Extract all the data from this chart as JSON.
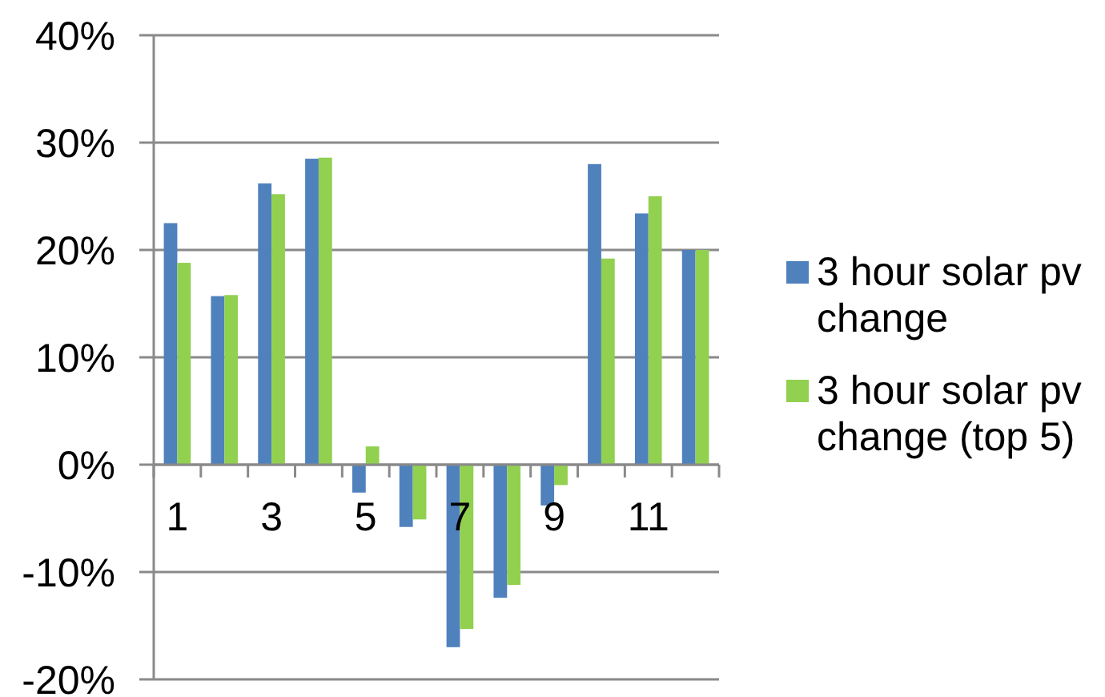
{
  "chart_data": {
    "type": "bar",
    "categories": [
      "1",
      null,
      "3",
      null,
      "5",
      null,
      "7",
      null,
      "9",
      null,
      "11",
      null
    ],
    "series": [
      {
        "name": "3 hour solar pv change",
        "color": "#4f81bd",
        "values": [
          22.5,
          15.7,
          26.2,
          28.5,
          -2.6,
          -5.8,
          -17.0,
          -12.4,
          -3.8,
          28.0,
          23.4,
          20.0
        ]
      },
      {
        "name": "3 hour solar pv change (top 5)",
        "color": "#92d050",
        "values": [
          18.8,
          15.8,
          25.2,
          28.6,
          1.7,
          -5.1,
          -15.3,
          -11.2,
          -1.9,
          19.2,
          25.0,
          20.0
        ]
      }
    ],
    "ylim": [
      -20,
      40
    ],
    "yticks": [
      {
        "value": -20,
        "label": "-20%"
      },
      {
        "value": -10,
        "label": "-10%"
      },
      {
        "value": 0,
        "label": "0%"
      },
      {
        "value": 10,
        "label": "10%"
      },
      {
        "value": 20,
        "label": "20%"
      },
      {
        "value": 30,
        "label": "30%"
      },
      {
        "value": 40,
        "label": "40%"
      }
    ],
    "grid": "y",
    "legend": "right"
  }
}
